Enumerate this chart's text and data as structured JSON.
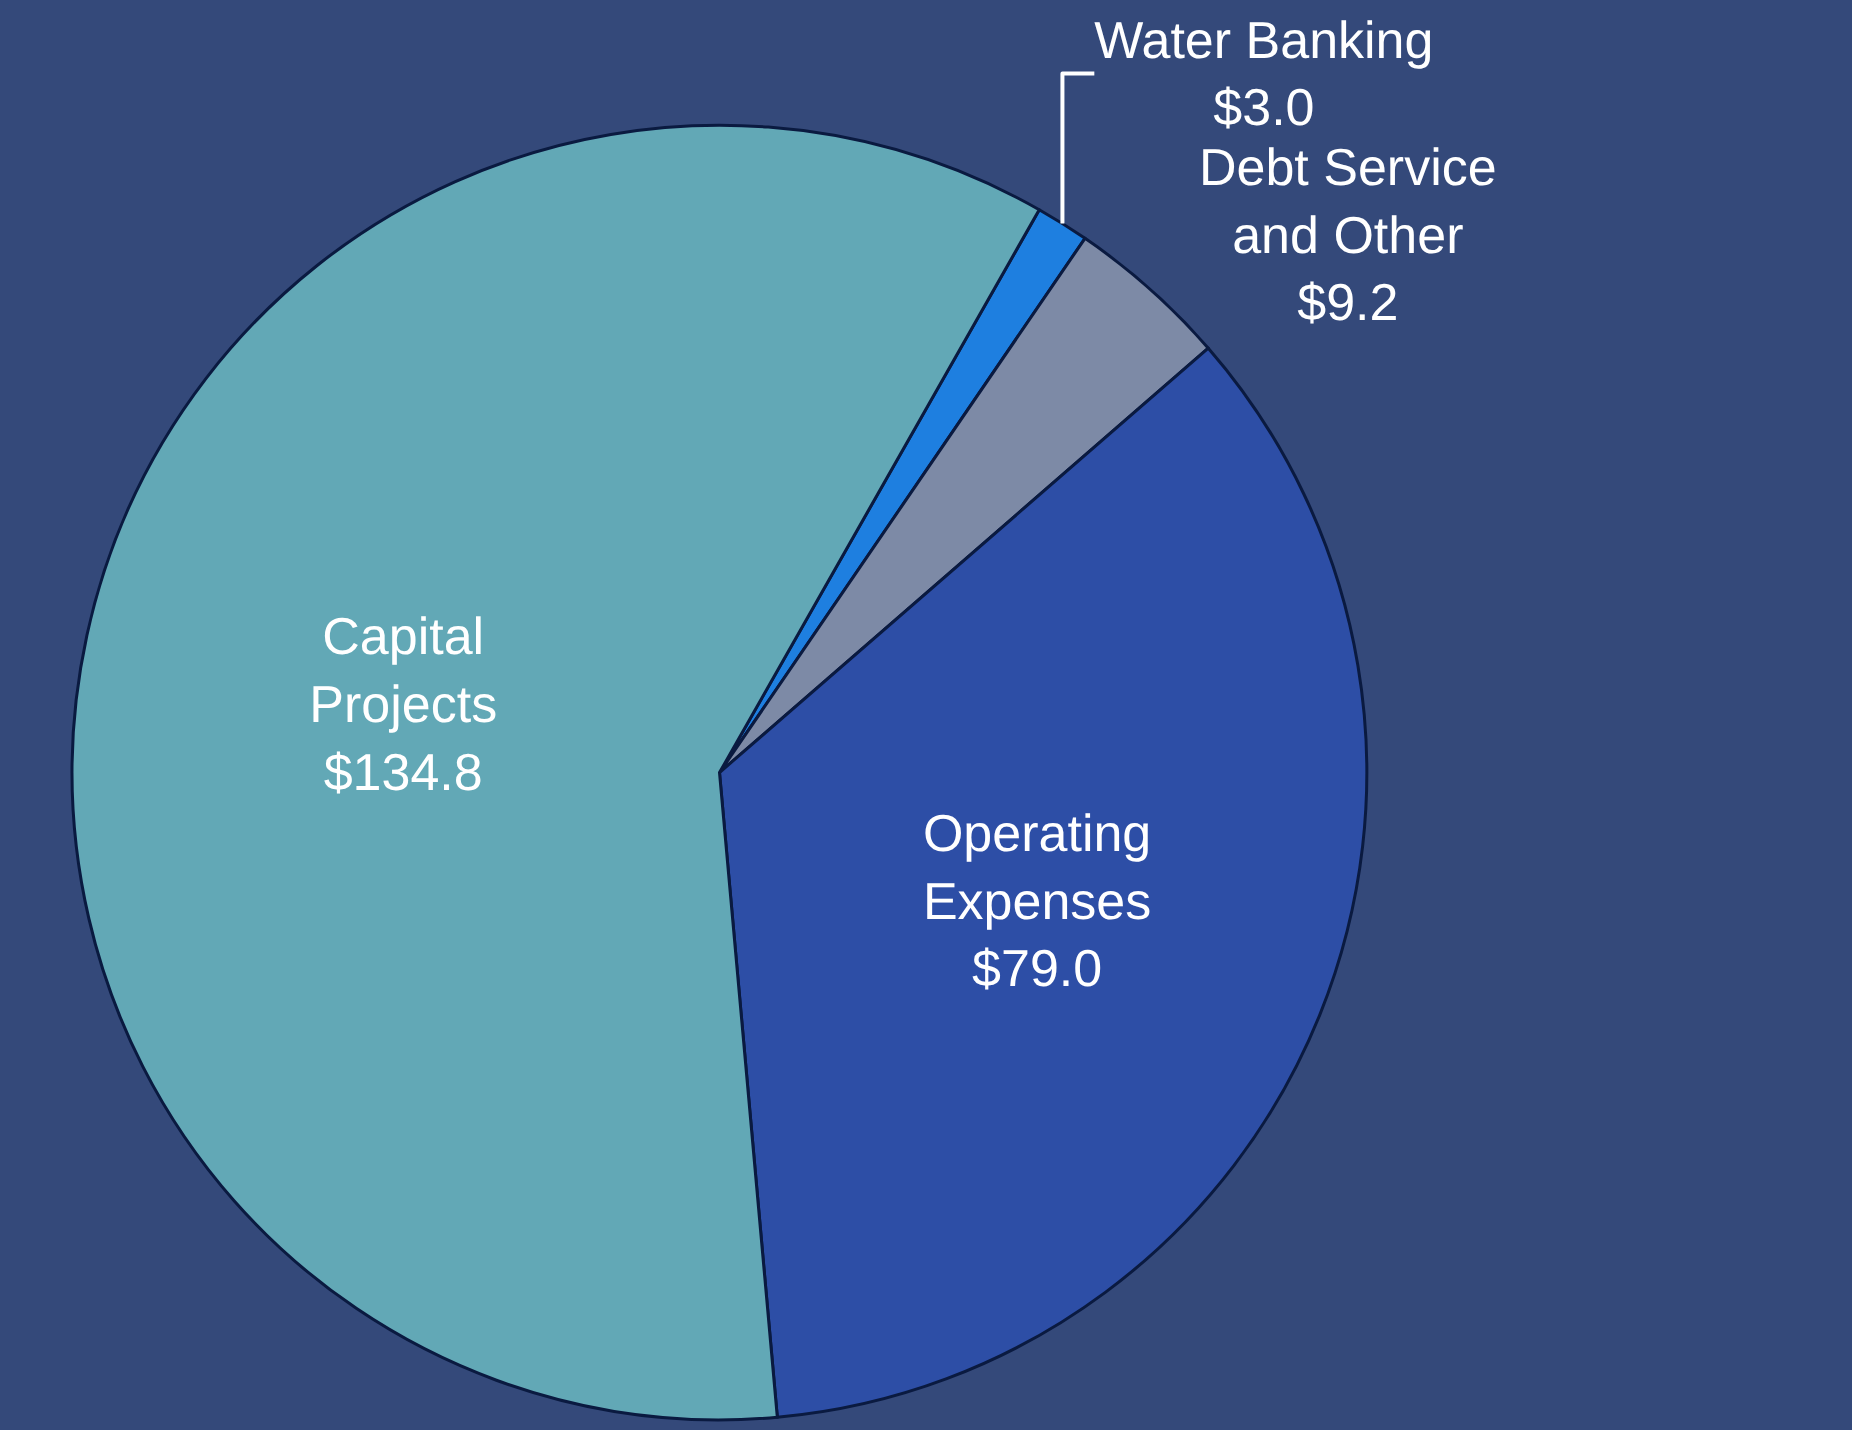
{
  "chart_data": {
    "type": "pie",
    "categories": [
      "Water Banking",
      "Debt Service and Other",
      "Operating Expenses",
      "Capital Projects"
    ],
    "values": [
      3.0,
      9.2,
      79.0,
      134.8
    ],
    "value_labels": [
      "$3.0",
      "$9.2",
      "$79.0",
      "$134.8"
    ],
    "colors": [
      "#1e7fe0",
      "#7d8aa6",
      "#2d4ea6",
      "#62a8b6"
    ],
    "legend": false
  }
}
